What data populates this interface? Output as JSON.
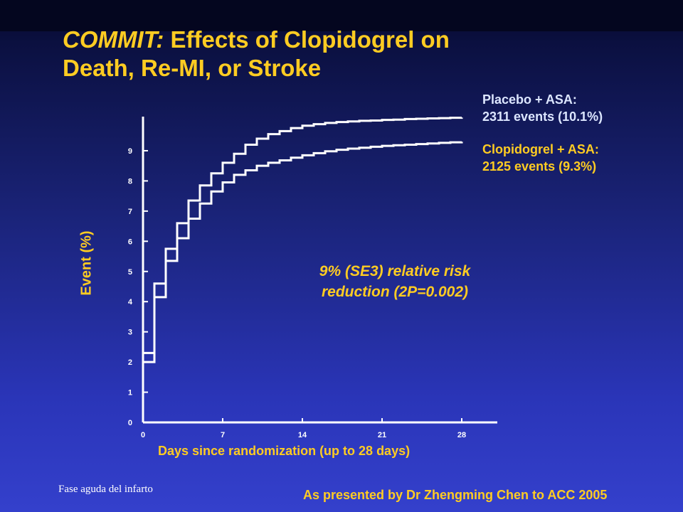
{
  "slide": {
    "title_italic": "COMMIT:",
    "title_rest_line1": " Effects of Clopidogrel on",
    "title_line2": "Death, Re-MI, or Stroke",
    "placebo_label_line1": "Placebo + ASA:",
    "placebo_label_line2": "2311 events (10.1%)",
    "clopidogrel_label_line1": "Clopidogrel + ASA:",
    "clopidogrel_label_line2": "2125 events (9.3%)",
    "rrr_line1": "9% (SE3) relative risk",
    "rrr_line2": "reduction (2P=0.002)",
    "footer_left": "Fase aguda del infarto",
    "footer_right": "As presented by Dr Zhengming Chen to ACC 2005"
  },
  "colors": {
    "accent": "#ffcc22",
    "placebo_label": "#dce6ff",
    "lines": "#ffffff"
  },
  "chart_data": {
    "type": "line",
    "step": true,
    "xlabel": "Days since randomization (up to 28 days)",
    "ylabel": "Event (%)",
    "xlim": [
      0,
      28
    ],
    "ylim": [
      0,
      10
    ],
    "xticks": [
      0,
      7,
      14,
      21,
      28
    ],
    "yticks": [
      0,
      1,
      2,
      3,
      4,
      5,
      6,
      7,
      8,
      9
    ],
    "grid": false,
    "series": [
      {
        "name": "Placebo + ASA",
        "x": [
          0,
          1,
          2,
          3,
          4,
          5,
          6,
          7,
          8,
          9,
          10,
          11,
          12,
          13,
          14,
          15,
          16,
          17,
          18,
          19,
          20,
          21,
          22,
          23,
          24,
          25,
          26,
          27,
          28
        ],
        "y": [
          2.3,
          4.6,
          5.75,
          6.6,
          7.35,
          7.85,
          8.25,
          8.6,
          8.9,
          9.2,
          9.4,
          9.55,
          9.65,
          9.75,
          9.83,
          9.88,
          9.92,
          9.95,
          9.97,
          9.99,
          10.0,
          10.02,
          10.03,
          10.05,
          10.06,
          10.07,
          10.08,
          10.09,
          10.1
        ]
      },
      {
        "name": "Clopidogrel + ASA",
        "x": [
          0,
          1,
          2,
          3,
          4,
          5,
          6,
          7,
          8,
          9,
          10,
          11,
          12,
          13,
          14,
          15,
          16,
          17,
          18,
          19,
          20,
          21,
          22,
          23,
          24,
          25,
          26,
          27,
          28
        ],
        "y": [
          2.0,
          4.15,
          5.35,
          6.1,
          6.75,
          7.25,
          7.65,
          7.95,
          8.2,
          8.35,
          8.5,
          8.6,
          8.68,
          8.77,
          8.85,
          8.92,
          8.98,
          9.03,
          9.07,
          9.1,
          9.13,
          9.16,
          9.18,
          9.2,
          9.22,
          9.24,
          9.26,
          9.28,
          9.3
        ]
      }
    ]
  }
}
